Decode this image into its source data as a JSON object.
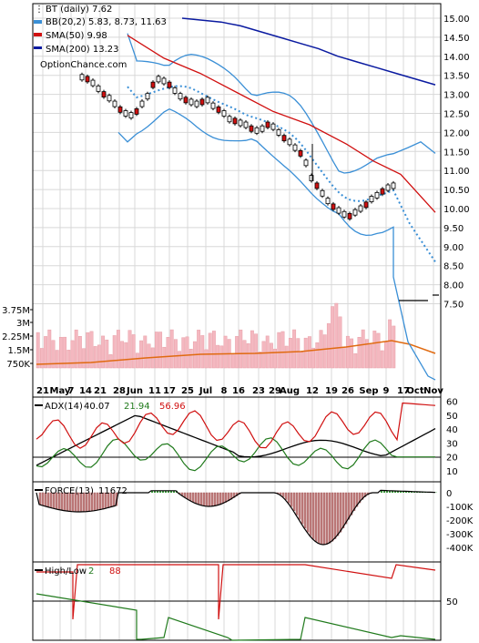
{
  "chart_data": {
    "type": "candlestick",
    "symbol_label": "BT (daily) 7.62",
    "watermark": "OptionChance.com",
    "legend": [
      {
        "label": "BB(20,2) 5.83, 8.73, 11.63",
        "color": "#3a8fd6"
      },
      {
        "label": "SMA(50) 9.98",
        "color": "#d01010"
      },
      {
        "label": "SMA(200) 13.23",
        "color": "#0a1aa0"
      }
    ],
    "x_tick_labels": [
      "21",
      "May",
      "7",
      "14",
      "21",
      "28",
      "Jun",
      "11",
      "17",
      "25",
      "Jul",
      "8",
      "16",
      "23",
      "29",
      "Aug",
      "12",
      "19",
      "26",
      "Sep",
      "9",
      "17",
      "Oct",
      "Nov"
    ],
    "price_axis": {
      "ticks": [
        "15.00",
        "14.50",
        "14.00",
        "13.50",
        "13.00",
        "12.50",
        "12.00",
        "11.50",
        "11.00",
        "10.50",
        "10.00",
        "9.50",
        "9.00",
        "8.50",
        "8.00",
        "7.50"
      ],
      "ylim": [
        7.2,
        15.2
      ]
    },
    "volume_axis": {
      "ticks": [
        "3.75M",
        "3M",
        "2.25M",
        "1.5M",
        "750K"
      ]
    },
    "price_path": [
      13.45,
      13.4,
      13.3,
      13.15,
      13.0,
      12.9,
      12.75,
      12.6,
      12.5,
      12.45,
      12.55,
      12.75,
      12.95,
      13.25,
      13.4,
      13.35,
      13.25,
      13.1,
      12.95,
      12.85,
      12.8,
      12.75,
      12.8,
      12.85,
      12.7,
      12.6,
      12.5,
      12.35,
      12.3,
      12.25,
      12.2,
      12.1,
      12.05,
      12.1,
      12.2,
      12.15,
      12.0,
      11.85,
      11.75,
      11.6,
      11.45,
      11.2,
      10.8,
      10.6,
      10.4,
      10.2,
      10.05,
      9.95,
      9.85,
      9.8,
      9.9,
      10.0,
      10.1,
      10.25,
      10.35,
      10.45,
      10.55,
      10.6
    ],
    "sma200": [
      15.0,
      14.95,
      14.9,
      14.8,
      14.65,
      14.5,
      14.35,
      14.2,
      14.0,
      13.85,
      13.7,
      13.55,
      13.4,
      13.25
    ],
    "adx_panel": {
      "label": "ADX(14)",
      "adx": "40.07",
      "plus_di": "21.94",
      "minus_di": "56.96",
      "ticks": [
        "60",
        "50",
        "40",
        "30",
        "20",
        "10"
      ]
    },
    "force_panel": {
      "label": "FORCE(13)",
      "value": "11672",
      "ticks": [
        "0",
        "-100K",
        "-200K",
        "-300K",
        "-400K"
      ]
    },
    "highlow_panel": {
      "label": "High/Low",
      "high": "2",
      "low": "88",
      "ticks": [
        "50"
      ]
    },
    "colors": {
      "adx": "#000000",
      "plus_di": "#207a1c",
      "minus_di": "#d01010",
      "bb": "#3a8fd6",
      "sma50": "#d01010",
      "sma200": "#0a1aa0",
      "volume": "#f4b8c0",
      "vol_avg": "#e06a10",
      "force": "#b05050"
    }
  }
}
